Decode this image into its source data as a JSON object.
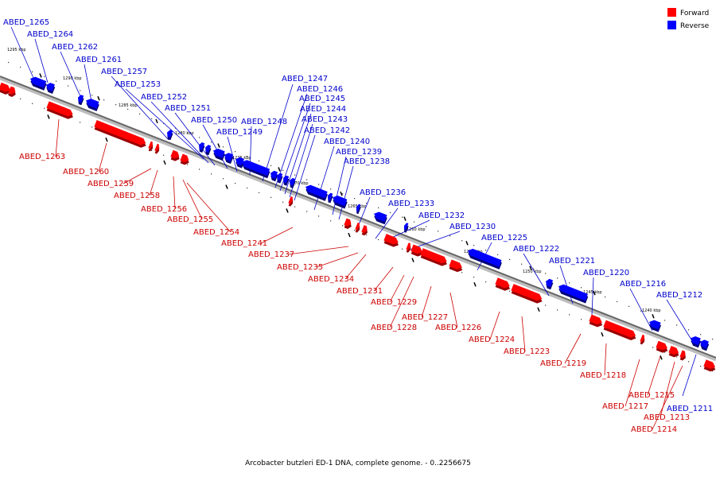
{
  "legend": [
    {
      "label": "Forward",
      "color": "#ff0000"
    },
    {
      "label": "Reverse",
      "color": "#0000ff"
    }
  ],
  "caption": "Arcobacter butzleri ED-1 DNA, complete genome. - 0..2256675",
  "colors": {
    "forward": "#ff0000",
    "reverse": "#0000ff",
    "backbone": "#888888"
  },
  "ticks": [
    {
      "label": "1295 kbp"
    },
    {
      "label": "1290 kbp"
    },
    {
      "label": "1285 kbp"
    },
    {
      "label": "1280 kbp"
    },
    {
      "label": "1275 kbp"
    },
    {
      "label": "1270 kbp"
    },
    {
      "label": "1265 kbp"
    },
    {
      "label": "1260 kbp"
    },
    {
      "label": "1255 kbp"
    },
    {
      "label": "1250 kbp"
    },
    {
      "label": "1245 kbp"
    },
    {
      "label": "1240 kbp"
    }
  ],
  "reverse_genes": [
    {
      "label": "ABED_1265"
    },
    {
      "label": "ABED_1264"
    },
    {
      "label": "ABED_1262"
    },
    {
      "label": "ABED_1261"
    },
    {
      "label": "ABED_1257"
    },
    {
      "label": "ABED_1253"
    },
    {
      "label": "ABED_1252"
    },
    {
      "label": "ABED_1251"
    },
    {
      "label": "ABED_1250"
    },
    {
      "label": "ABED_1249"
    },
    {
      "label": "ABED_1248"
    },
    {
      "label": "ABED_1247"
    },
    {
      "label": "ABED_1246"
    },
    {
      "label": "ABED_1245"
    },
    {
      "label": "ABED_1244"
    },
    {
      "label": "ABED_1243"
    },
    {
      "label": "ABED_1242"
    },
    {
      "label": "ABED_1240"
    },
    {
      "label": "ABED_1239"
    },
    {
      "label": "ABED_1238"
    },
    {
      "label": "ABED_1236"
    },
    {
      "label": "ABED_1233"
    },
    {
      "label": "ABED_1232"
    },
    {
      "label": "ABED_1230"
    },
    {
      "label": "ABED_1225"
    },
    {
      "label": "ABED_1222"
    },
    {
      "label": "ABED_1221"
    },
    {
      "label": "ABED_1220"
    },
    {
      "label": "ABED_1216"
    },
    {
      "label": "ABED_1212"
    },
    {
      "label": "ABED_1211"
    }
  ],
  "forward_genes": [
    {
      "label": "ABED_1263"
    },
    {
      "label": "ABED_1260"
    },
    {
      "label": "ABED_1259"
    },
    {
      "label": "ABED_1258"
    },
    {
      "label": "ABED_1256"
    },
    {
      "label": "ABED_1255"
    },
    {
      "label": "ABED_1254"
    },
    {
      "label": "ABED_1241"
    },
    {
      "label": "ABED_1237"
    },
    {
      "label": "ABED_1235"
    },
    {
      "label": "ABED_1234"
    },
    {
      "label": "ABED_1231"
    },
    {
      "label": "ABED_1229"
    },
    {
      "label": "ABED_1228"
    },
    {
      "label": "ABED_1227"
    },
    {
      "label": "ABED_1226"
    },
    {
      "label": "ABED_1224"
    },
    {
      "label": "ABED_1223"
    },
    {
      "label": "ABED_1219"
    },
    {
      "label": "ABED_1218"
    },
    {
      "label": "ABED_1217"
    },
    {
      "label": "ABED_1215"
    },
    {
      "label": "ABED_1213"
    },
    {
      "label": "ABED_1214"
    }
  ]
}
